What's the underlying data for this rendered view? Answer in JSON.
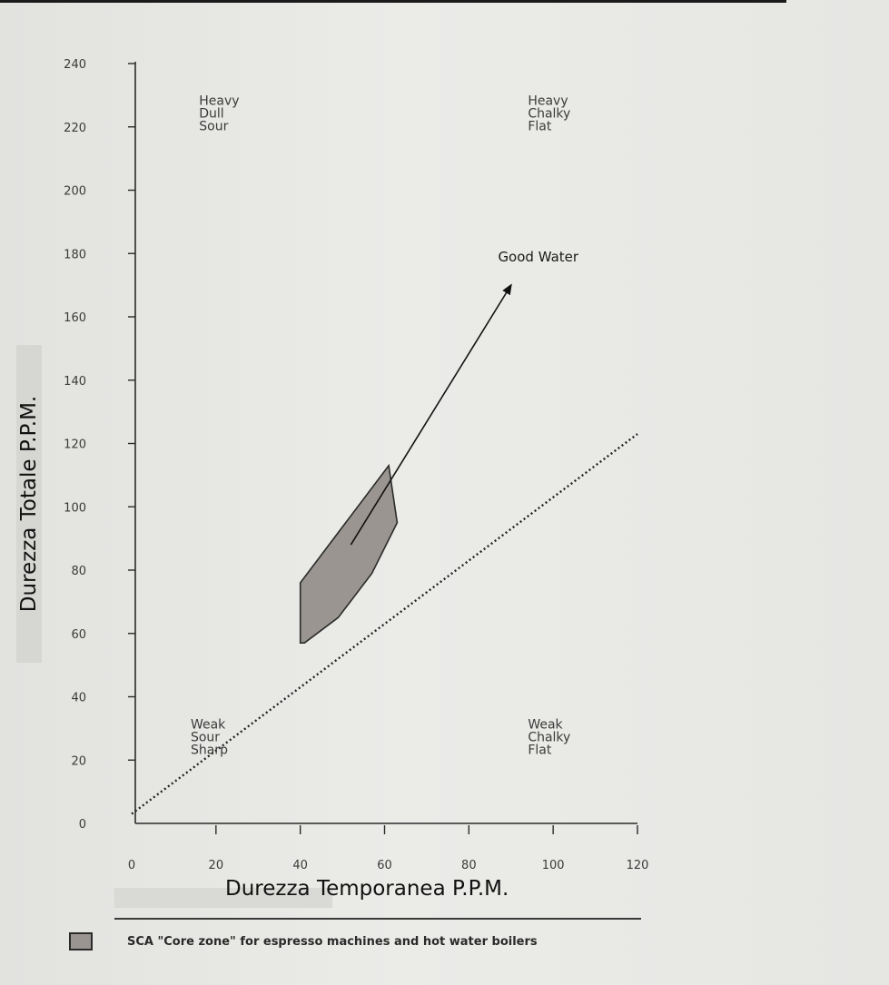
{
  "chart_data": {
    "type": "scatter",
    "xlabel": "Durezza Temporanea   P.P.M.",
    "ylabel": "Durezza Totale   P.P.M.",
    "xlim": [
      0,
      120
    ],
    "ylim": [
      0,
      240
    ],
    "x_ticks": [
      0,
      20,
      40,
      60,
      80,
      100,
      120
    ],
    "y_ticks": [
      0,
      20,
      40,
      60,
      80,
      100,
      120,
      140,
      160,
      180,
      200,
      220,
      240
    ],
    "grid": false,
    "core_zone_polygon": [
      {
        "x": 40,
        "y": 57
      },
      {
        "x": 40,
        "y": 76
      },
      {
        "x": 61,
        "y": 113
      },
      {
        "x": 63,
        "y": 95
      },
      {
        "x": 57,
        "y": 79
      },
      {
        "x": 49,
        "y": 65
      },
      {
        "x": 41,
        "y": 57
      }
    ],
    "reference_line": {
      "style": "dotted",
      "points": [
        {
          "x": 0,
          "y": 3
        },
        {
          "x": 120,
          "y": 123
        }
      ]
    },
    "arrow": {
      "label": "Good Water",
      "from": {
        "x": 52,
        "y": 88
      },
      "to": {
        "x": 90,
        "y": 170
      }
    },
    "zone_labels": [
      {
        "lines": [
          "Heavy",
          "Dull",
          "Sour"
        ],
        "x": 16,
        "y": 227
      },
      {
        "lines": [
          "Heavy",
          "Chalky",
          "Flat"
        ],
        "x": 94,
        "y": 227
      },
      {
        "lines": [
          "Weak",
          "Sour",
          "Sharp"
        ],
        "x": 14,
        "y": 30
      },
      {
        "lines": [
          "Weak",
          "Chalky",
          "Flat"
        ],
        "x": 94,
        "y": 30
      }
    ],
    "legend": [
      {
        "label": "SCA  \"Core zone\" for espresso machines and hot water boilers",
        "color": "#9a9590"
      }
    ],
    "colors": {
      "zone_fill": "#9a9590",
      "ink": "#2a2a2a"
    }
  }
}
